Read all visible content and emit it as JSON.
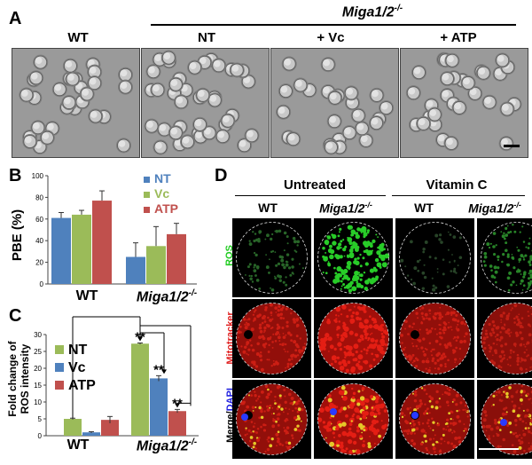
{
  "panel_a": {
    "letter": "A",
    "genotype_header": "Miga1/2",
    "genotype_sup": "-/-",
    "columns": [
      "WT",
      "NT",
      "+ Vc",
      "+ ATP"
    ]
  },
  "panel_b": {
    "letter": "B",
    "ylabel": "PBE (%)",
    "group_wt": "WT",
    "group_ko": "Miga1/2",
    "group_ko_sup": "-/-",
    "ticks": [
      "0",
      "20",
      "40",
      "60",
      "80",
      "100"
    ],
    "legend": [
      "NT",
      "Vc",
      "ATP"
    ]
  },
  "panel_c": {
    "letter": "C",
    "ylabel_line1": "Fold change of",
    "ylabel_line2": "ROS intensity",
    "group_wt": "WT",
    "group_ko": "Miga1/2",
    "group_ko_sup": "-/-",
    "ticks": [
      "0",
      "5",
      "10",
      "15",
      "20",
      "25",
      "30"
    ],
    "legend": [
      "NT",
      "Vc",
      "ATP"
    ],
    "sig": "**"
  },
  "panel_d": {
    "letter": "D",
    "header_untreated": "Untreated",
    "header_vitc": "Vitamin C",
    "col_wt": "WT",
    "col_ko": "Miga1/2",
    "col_ko_sup": "-/-",
    "row_ros": "ROS",
    "row_mito": "Mitotracker",
    "row_merge_a": "Merge/",
    "row_merge_b": "DAPI"
  },
  "colors": {
    "nt": "#4f81bd",
    "vc": "#9bbb59",
    "atp": "#c0504d",
    "ros_label": "#22cc22",
    "mito_label": "#e02020",
    "dapi_label": "#2020e0"
  },
  "chart_data": [
    {
      "type": "bar",
      "title": "",
      "ylabel": "PBE (%)",
      "categories": [
        "WT",
        "Miga1/2-/-"
      ],
      "series": [
        {
          "name": "NT",
          "values": [
            61,
            25
          ],
          "errors": [
            5,
            13
          ]
        },
        {
          "name": "Vc",
          "values": [
            64,
            35
          ],
          "errors": [
            4,
            18
          ]
        },
        {
          "name": "ATP",
          "values": [
            77,
            46
          ],
          "errors": [
            9,
            10
          ]
        }
      ],
      "ylim": [
        0,
        100
      ]
    },
    {
      "type": "bar",
      "title": "",
      "ylabel": "Fold change of ROS intensity",
      "categories": [
        "WT",
        "Miga1/2-/-"
      ],
      "series": [
        {
          "name": "NT",
          "values": [
            5,
            27.3
          ],
          "errors": [
            0.2,
            0.2
          ]
        },
        {
          "name": "Vc",
          "values": [
            1,
            17
          ],
          "errors": [
            0.2,
            0.8
          ]
        },
        {
          "name": "ATP",
          "values": [
            4.7,
            7.3
          ],
          "errors": [
            1,
            0.5
          ]
        }
      ],
      "ylim": [
        0,
        30
      ]
    }
  ]
}
